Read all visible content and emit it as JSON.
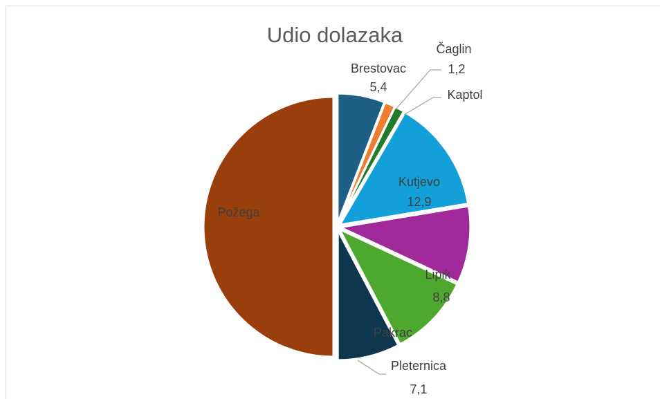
{
  "chart_data": {
    "type": "pie",
    "title": "Udio dolazaka",
    "categories": [
      "Brestovac",
      "Čaglin",
      "Kaptol",
      "Kutjevo",
      "Lipik",
      "Pakrac",
      "Pleternica",
      "Požega"
    ],
    "values": [
      5.4,
      1.2,
      1.1,
      12.9,
      8.8,
      9.5,
      7.1,
      46
    ],
    "value_labels": [
      "5,4",
      "1,2",
      null,
      "12,9",
      "8,8",
      null,
      "7,1",
      null
    ],
    "colors": [
      "#1f5f86",
      "#ed7d31",
      "#217a2e",
      "#139fd8",
      "#a0299a",
      "#4ea72e",
      "#0e374f",
      "#993f0c"
    ]
  }
}
